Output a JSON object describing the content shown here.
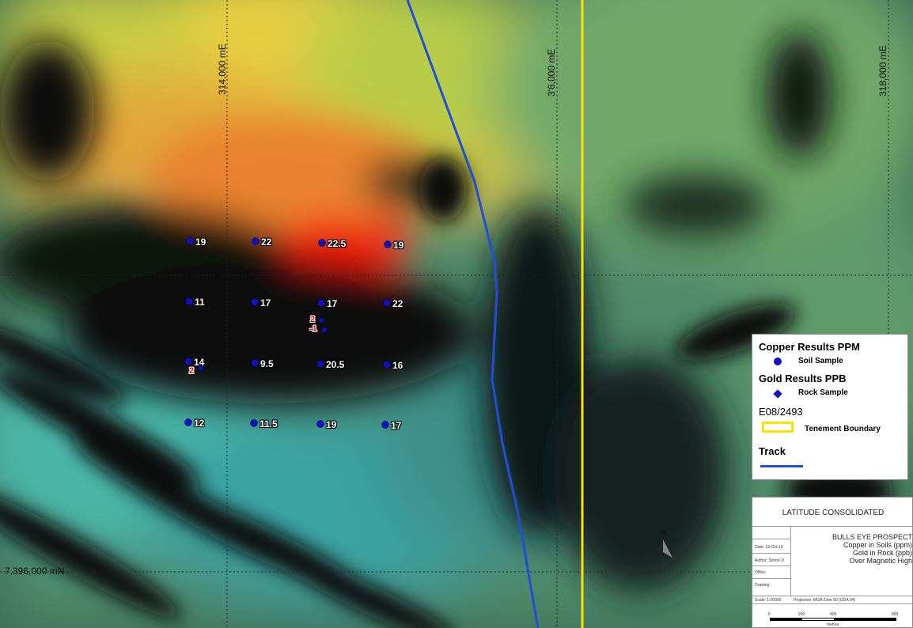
{
  "grid": {
    "eastings": [
      "314,000 mE",
      "3'6,000 mE",
      "318,000 mE"
    ],
    "northing": "7,396,000 mN"
  },
  "copper_samples": [
    "19",
    "22",
    "22.5",
    "19",
    "11",
    "17",
    "17",
    "22",
    "14",
    "9.5",
    "20.5",
    "16",
    "12",
    "11.5",
    "19",
    "17"
  ],
  "gold_samples": [
    "2",
    "-1",
    "2"
  ],
  "legend": {
    "copper_title": "Copper Results PPM",
    "soil_sample": "Soil Sample",
    "gold_title": "Gold Results PPB",
    "rock_sample": "Rock Sample",
    "tenement_id": "E08/2493",
    "tenement_boundary": "Tenement Boundary",
    "track": "Track"
  },
  "title_block": {
    "company": "LATITUDE CONSOLIDATED",
    "prospect": "BULLS EYE PROSPECT",
    "line1": "Copper in Soils (ppm)",
    "line2": "Gold in Rock (ppb)",
    "line3": "Over Magnetic High",
    "date": "Date: 13-Oct-10",
    "author": "Author: Simon O",
    "office": "Office:",
    "drawing": "Drawing:",
    "scale": "Scale: 1:20000",
    "projection": "Projection: MGA Zone 50 (GDA 94)",
    "scale_ticks": [
      "0",
      "200",
      "400",
      "800"
    ],
    "scale_unit": "metres",
    "north": "N"
  },
  "colors": {
    "track": "#1f4fd6",
    "tenement": "#ffe000",
    "sample": "#1010c8",
    "gold_label": "#dd1111"
  }
}
